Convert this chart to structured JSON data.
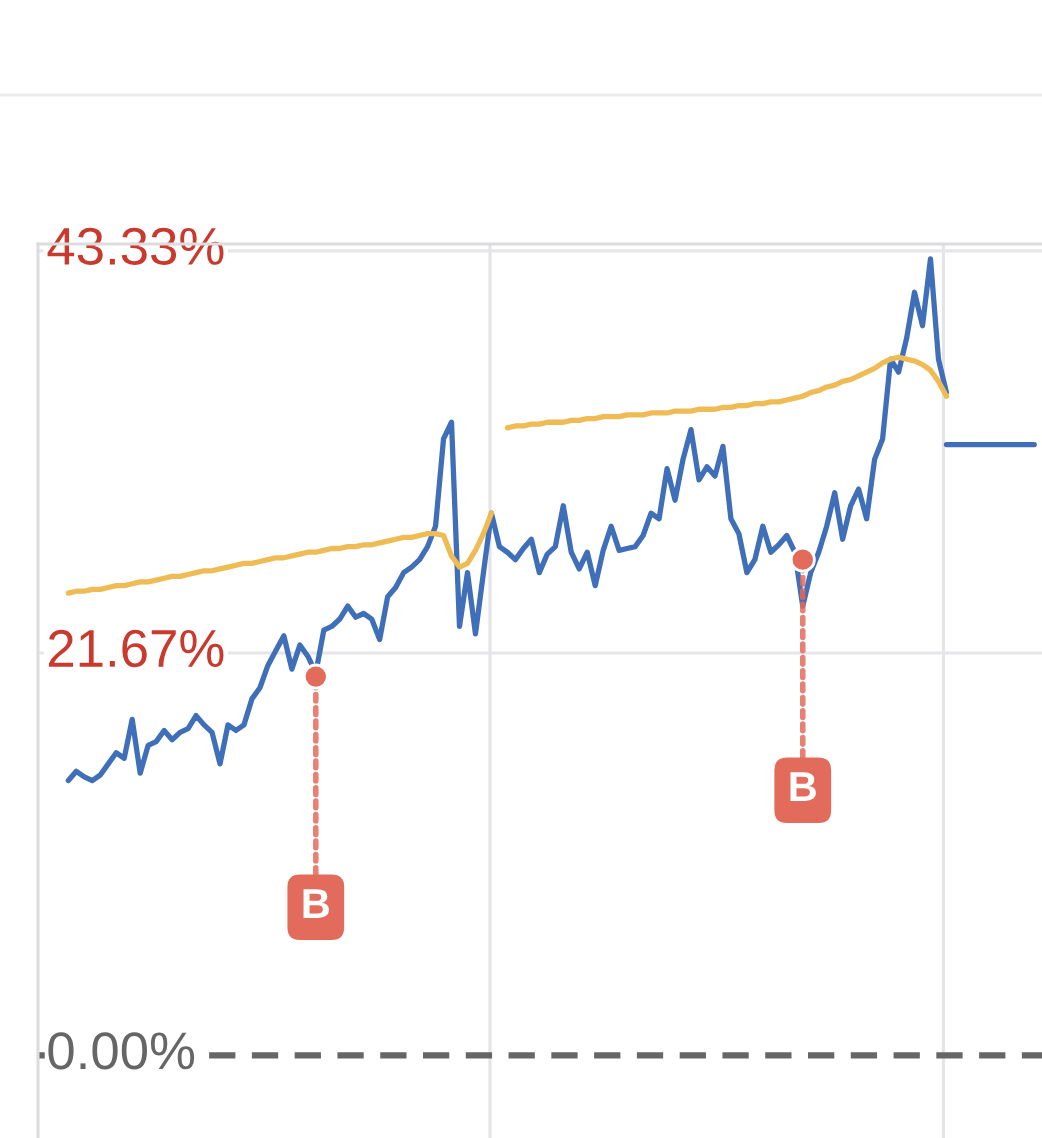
{
  "chart_data": {
    "type": "line",
    "categories": [
      null,
      null,
      null,
      null,
      null,
      null,
      null,
      null,
      null,
      null,
      null,
      null,
      null,
      null,
      null,
      null,
      null,
      null,
      null,
      null,
      null,
      null,
      null,
      null,
      null,
      null,
      null,
      null,
      null,
      null,
      null,
      null,
      null,
      null,
      null,
      null,
      null,
      null,
      null,
      null,
      null,
      null,
      null,
      null,
      null,
      null,
      null,
      null,
      null,
      null,
      null,
      null,
      null,
      null,
      null,
      null,
      null,
      null,
      null,
      null,
      null,
      null,
      null,
      null,
      null,
      null,
      null,
      null,
      null,
      null,
      null,
      null,
      null,
      null,
      null,
      null,
      null,
      null,
      null,
      null,
      null,
      null,
      null,
      null,
      null,
      null,
      null,
      null,
      null,
      null,
      null,
      null,
      null,
      null,
      null,
      null,
      null,
      null,
      null,
      null,
      null,
      null,
      null,
      null,
      null,
      null,
      null,
      null,
      null,
      null,
      null,
      null,
      null,
      null,
      null,
      null,
      null,
      null,
      null,
      null,
      null,
      null
    ],
    "series": [
      {
        "color": "#3f6fb8",
        "values": [
          14.8,
          15.3,
          15.0,
          14.8,
          15.1,
          15.7,
          16.3,
          16.0,
          18.1,
          15.2,
          16.7,
          16.9,
          17.5,
          17.0,
          17.4,
          17.6,
          18.3,
          17.8,
          17.4,
          15.7,
          17.8,
          17.5,
          17.8,
          19.2,
          19.8,
          21.0,
          21.8,
          22.6,
          20.8,
          22.1,
          21.5,
          20.6,
          22.9,
          23.1,
          23.5,
          24.2,
          23.6,
          23.8,
          23.5,
          22.4,
          24.7,
          25.2,
          26.0,
          26.3,
          26.7,
          27.4,
          28.5,
          33.2,
          34.1,
          23.1,
          26.0,
          22.7,
          26.0,
          29.2,
          27.4,
          27.1,
          26.7,
          27.3,
          27.8,
          26.0,
          27.0,
          27.4,
          29.6,
          27.1,
          26.2,
          27.1,
          25.3,
          27.2,
          28.5,
          27.2,
          27.3,
          27.4,
          28.0,
          29.2,
          28.9,
          31.6,
          29.9,
          32.1,
          33.7,
          31.0,
          31.7,
          31.2,
          32.8,
          28.9,
          28.1,
          26.0,
          26.7,
          28.5,
          27.1,
          27.5,
          28.0,
          27.1,
          24.2,
          26.0,
          27.1,
          28.5,
          30.3,
          27.8,
          29.6,
          30.5,
          28.9,
          32.1,
          33.2,
          37.5,
          36.8,
          38.6,
          41.1,
          39.3,
          42.9,
          37.5,
          35.7,
          null,
          null,
          null,
          null,
          null,
          null,
          null,
          null,
          null,
          null,
          null
        ]
      },
      {
        "color": "#efbb55",
        "values": [
          24.9,
          25.0,
          25.0,
          25.1,
          25.1,
          25.2,
          25.3,
          25.3,
          25.4,
          25.5,
          25.5,
          25.6,
          25.7,
          25.8,
          25.8,
          25.9,
          26.0,
          26.1,
          26.1,
          26.2,
          26.3,
          26.4,
          26.5,
          26.5,
          26.6,
          26.7,
          26.8,
          26.8,
          26.9,
          27.0,
          27.1,
          27.1,
          27.2,
          27.3,
          27.3,
          27.4,
          27.4,
          27.5,
          27.5,
          27.6,
          27.7,
          27.8,
          27.9,
          27.9,
          28.0,
          28.1,
          28.1,
          28.0,
          26.9,
          26.3,
          26.5,
          27.2,
          28.1,
          29.2,
          null,
          33.8,
          33.9,
          33.9,
          34.0,
          34.0,
          34.1,
          34.1,
          34.1,
          34.2,
          34.2,
          34.3,
          34.3,
          34.4,
          34.4,
          34.4,
          34.5,
          34.5,
          34.5,
          34.6,
          34.6,
          34.6,
          34.7,
          34.7,
          34.7,
          34.8,
          34.8,
          34.8,
          34.9,
          34.9,
          35.0,
          35.0,
          35.1,
          35.1,
          35.2,
          35.2,
          35.3,
          35.4,
          35.5,
          35.7,
          35.8,
          36.0,
          36.1,
          36.3,
          36.4,
          36.6,
          36.8,
          37.0,
          37.3,
          37.5,
          37.6,
          37.5,
          37.4,
          37.2,
          36.9,
          36.3,
          35.5,
          null,
          null,
          null,
          null,
          null,
          null,
          null,
          null,
          null,
          null,
          null
        ]
      },
      {
        "color": "#3f6fb8",
        "values": [
          null,
          null,
          null,
          null,
          null,
          null,
          null,
          null,
          null,
          null,
          null,
          null,
          null,
          null,
          null,
          null,
          null,
          null,
          null,
          null,
          null,
          null,
          null,
          null,
          null,
          null,
          null,
          null,
          null,
          null,
          null,
          null,
          null,
          null,
          null,
          null,
          null,
          null,
          null,
          null,
          null,
          null,
          null,
          null,
          null,
          null,
          null,
          null,
          null,
          null,
          null,
          null,
          null,
          null,
          null,
          null,
          null,
          null,
          null,
          null,
          null,
          null,
          null,
          null,
          null,
          null,
          null,
          null,
          null,
          null,
          null,
          null,
          null,
          null,
          null,
          null,
          null,
          null,
          null,
          null,
          null,
          null,
          null,
          null,
          null,
          null,
          null,
          null,
          null,
          null,
          null,
          null,
          null,
          null,
          null,
          null,
          null,
          null,
          null,
          null,
          null,
          null,
          null,
          null,
          null,
          null,
          null,
          null,
          null,
          null,
          32.9,
          32.9,
          32.9,
          32.9,
          32.9,
          32.9,
          32.9,
          32.9,
          32.9,
          32.9,
          32.9,
          32.9
        ]
      },
      {
        "type": "scatter",
        "color": "#e36b5c",
        "values": [
          null,
          null,
          null,
          null,
          null,
          null,
          null,
          null,
          null,
          null,
          null,
          null,
          null,
          null,
          null,
          null,
          null,
          null,
          null,
          null,
          null,
          null,
          null,
          null,
          null,
          null,
          null,
          null,
          null,
          null,
          null,
          20.4,
          null,
          null,
          null,
          null,
          null,
          null,
          null,
          null,
          null,
          null,
          null,
          null,
          null,
          null,
          null,
          null,
          null,
          null,
          null,
          null,
          null,
          null,
          null,
          null,
          null,
          null,
          null,
          null,
          null,
          null,
          null,
          null,
          null,
          null,
          null,
          null,
          null,
          null,
          null,
          null,
          null,
          null,
          null,
          null,
          null,
          null,
          null,
          null,
          null,
          null,
          null,
          null,
          null,
          null,
          null,
          null,
          null,
          null,
          null,
          null,
          26.7,
          null,
          null,
          null,
          null,
          null,
          null,
          null,
          null,
          null,
          null,
          null,
          null,
          null,
          null,
          null,
          null,
          null,
          null,
          null,
          null,
          null,
          null,
          null,
          null,
          null,
          null,
          null,
          null,
          null
        ]
      }
    ],
    "ylim": [
      -4.45,
      43.7
    ],
    "yticks": [
      {
        "value": 43.33,
        "label": "43.33%"
      },
      {
        "value": 21.67,
        "label": "21.67%"
      }
    ],
    "grid": true,
    "tick_labels": "y",
    "ref_lines": [
      {
        "axis": "y",
        "value": 0,
        "label": "0.00%",
        "color": "#666666",
        "line_style": "dashed"
      }
    ],
    "annotations": [
      "B",
      "B"
    ]
  }
}
